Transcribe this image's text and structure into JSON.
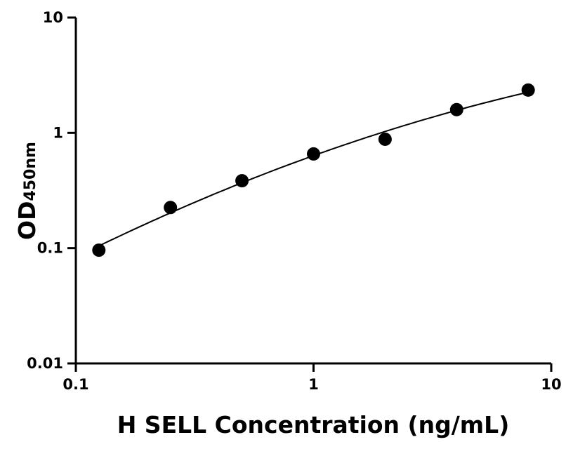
{
  "chart_data": {
    "type": "scatter",
    "title": "",
    "xlabel": "H SELL Concentration (ng/mL)",
    "ylabel": "OD",
    "ylabel_sub": "450nm",
    "x_scale": "log",
    "y_scale": "log",
    "xlim": [
      0.1,
      10
    ],
    "ylim": [
      0.01,
      10
    ],
    "x_ticks": [
      "0.1",
      "1",
      "10"
    ],
    "y_ticks": [
      "10",
      "1",
      "0.1",
      "0.01"
    ],
    "grid": false,
    "legend": "none",
    "marker_color": "#000000",
    "fit_curve": true,
    "points": [
      {
        "x": 0.125,
        "y": 0.096
      },
      {
        "x": 0.25,
        "y": 0.225
      },
      {
        "x": 0.5,
        "y": 0.384
      },
      {
        "x": 1,
        "y": 0.656
      },
      {
        "x": 2,
        "y": 0.88
      },
      {
        "x": 4,
        "y": 1.59
      },
      {
        "x": 8,
        "y": 2.35
      }
    ]
  }
}
